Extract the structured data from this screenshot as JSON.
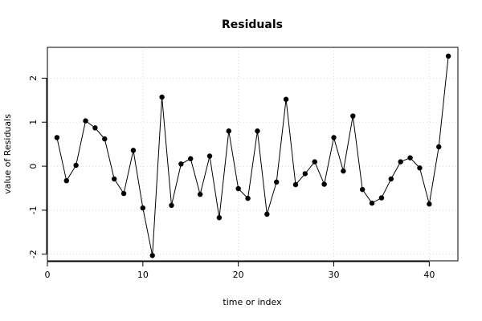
{
  "chart_data": {
    "type": "line",
    "title": "Residuals",
    "xlabel": "time or index",
    "ylabel": "value of Residuals",
    "xlim": [
      0,
      43
    ],
    "ylim": [
      -2.15,
      2.7
    ],
    "grid": true,
    "x_ticks": [
      0,
      10,
      20,
      30,
      40
    ],
    "y_ticks": [
      -2,
      -1,
      0,
      1,
      2
    ],
    "series": [
      {
        "x": [
          1,
          2,
          3,
          4,
          5,
          6,
          7,
          8,
          9,
          10,
          11,
          12,
          13,
          14,
          15,
          16,
          17,
          18,
          19,
          20,
          21,
          22,
          23,
          24,
          25,
          26,
          27,
          28,
          29,
          30,
          31,
          32,
          33,
          34,
          35,
          36,
          37,
          38,
          39,
          40,
          41,
          42
        ],
        "values": [
          0.65,
          -0.33,
          0.02,
          1.03,
          0.87,
          0.62,
          -0.29,
          -0.62,
          0.36,
          -0.95,
          -2.03,
          1.57,
          -0.89,
          0.05,
          0.17,
          -0.64,
          0.23,
          -1.17,
          0.8,
          -0.51,
          -0.73,
          0.8,
          -1.09,
          -0.36,
          1.52,
          -0.42,
          -0.17,
          0.1,
          -0.41,
          0.65,
          -0.11,
          1.14,
          -0.53,
          -0.84,
          -0.72,
          -0.29,
          0.1,
          0.19,
          -0.04,
          -0.86,
          0.44,
          2.5
        ]
      }
    ]
  }
}
